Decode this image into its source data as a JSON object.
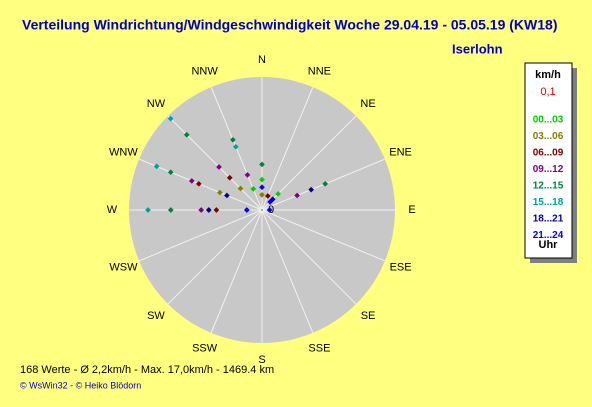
{
  "chart_data": {
    "type": "polar-scatter",
    "title": "Verteilung Windrichtung/Windgeschwindigkeit  Woche 29.04.19 - 05.05.19 (KW18)",
    "subtitle": "Iserlohn",
    "categories": [
      "N",
      "NNE",
      "NE",
      "ENE",
      "E",
      "ESE",
      "SE",
      "SSE",
      "S",
      "SSW",
      "SW",
      "WSW",
      "W",
      "WNW",
      "NW",
      "NNW"
    ],
    "rlim": [
      0,
      17.5
    ],
    "rticks": [
      0
    ],
    "legend_title": "km/h",
    "legend_subtitle": "0,1",
    "legend_footer": "Uhr",
    "series": [
      {
        "name": "00...03",
        "color": "#00d000",
        "x": [
          337.5,
          0,
          45
        ],
        "values": [
          3,
          4,
          3
        ]
      },
      {
        "name": "03...06",
        "color": "#808000",
        "x": [
          292.5,
          270,
          0,
          315
        ],
        "values": [
          6,
          7,
          2,
          4
        ]
      },
      {
        "name": "06...09",
        "color": "#800000",
        "x": [
          292.5,
          270,
          315,
          22.5
        ],
        "values": [
          9,
          6,
          6,
          2
        ]
      },
      {
        "name": "09...12",
        "color": "#800080",
        "x": [
          292.5,
          270,
          315,
          337.5,
          67.5
        ],
        "values": [
          10,
          8,
          8,
          5,
          5
        ]
      },
      {
        "name": "12...15",
        "color": "#008040",
        "x": [
          292.5,
          270,
          315,
          337.5,
          67.5,
          0
        ],
        "values": [
          13,
          12,
          14,
          10,
          9,
          6
        ]
      },
      {
        "name": "15...18",
        "color": "#00a0a0",
        "x": [
          315,
          292.5,
          270,
          337.5
        ],
        "values": [
          17,
          15,
          15,
          9
        ]
      },
      {
        "name": "18...21",
        "color": "#0000a0",
        "x": [
          270,
          292.5,
          45,
          67.5
        ],
        "values": [
          7,
          5,
          2,
          7
        ]
      },
      {
        "name": "21...24",
        "color": "#0000ff",
        "x": [
          270,
          0,
          45,
          90
        ],
        "values": [
          2,
          3,
          1.5,
          1
        ]
      }
    ],
    "footer": "168 Werte   -   Ø 2,2km/h  -  Max. 17,0km/h   -   1469.4 km",
    "credit": "© WsWin32  -  © Heiko Blödorn"
  }
}
